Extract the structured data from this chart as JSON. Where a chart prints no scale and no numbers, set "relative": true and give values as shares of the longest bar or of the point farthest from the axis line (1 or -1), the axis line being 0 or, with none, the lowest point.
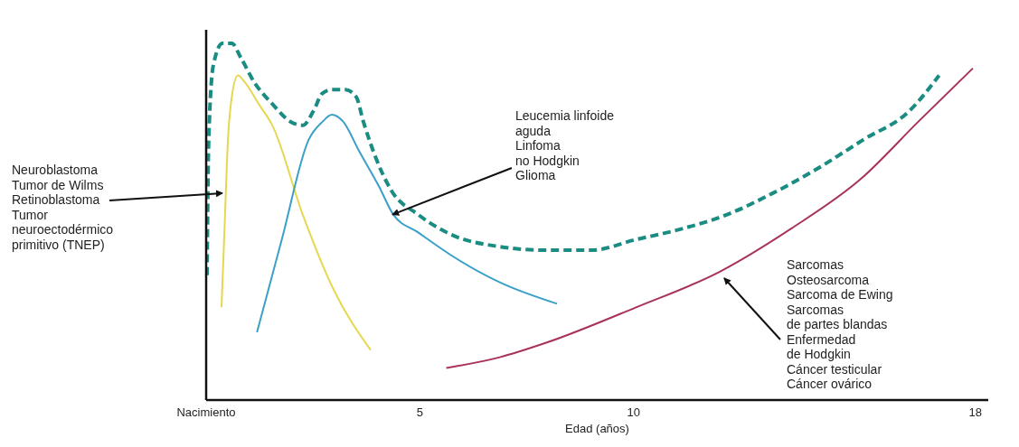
{
  "chart_data": {
    "type": "line",
    "relative": true,
    "xlabel": "Edad (años)",
    "xlim": [
      0,
      18.3
    ],
    "xticks": [
      {
        "value": 0,
        "label": "Nacimiento"
      },
      5,
      10,
      18
    ],
    "series": [
      {
        "color": "#1a8c82",
        "line_style": "dashed",
        "x": [
          0.02,
          0.06,
          0.17,
          0.38,
          0.6,
          0.81,
          1.13,
          1.55,
          1.98,
          2.26,
          2.51,
          2.72,
          2.94,
          3.26,
          3.51,
          3.68,
          4.0,
          4.32,
          4.96,
          5.81,
          6.87,
          7.94,
          9.0,
          10.06,
          11.13,
          12.19,
          13.26,
          14.32,
          15.38,
          16.45,
          17.15
        ],
        "values": [
          0.35,
          0.73,
          0.94,
          1.0,
          1.0,
          0.96,
          0.89,
          0.83,
          0.78,
          0.77,
          0.81,
          0.86,
          0.87,
          0.87,
          0.85,
          0.78,
          0.67,
          0.59,
          0.52,
          0.46,
          0.43,
          0.42,
          0.42,
          0.45,
          0.48,
          0.52,
          0.58,
          0.65,
          0.73,
          0.81,
          0.91
        ]
      },
      {
        "color": "#e6d84e",
        "x": [
          0.36,
          0.43,
          0.51,
          0.6,
          0.74,
          0.91,
          1.23,
          1.55,
          2.26,
          2.98,
          3.85
        ],
        "values": [
          0.26,
          0.48,
          0.73,
          0.85,
          0.91,
          0.89,
          0.83,
          0.77,
          0.52,
          0.31,
          0.14
        ]
      },
      {
        "color": "#3aa0c8",
        "x": [
          1.19,
          1.77,
          2.4,
          2.72,
          2.94,
          3.21,
          3.57,
          4.04,
          4.38,
          4.96,
          5.81,
          6.87,
          8.21
        ],
        "values": [
          0.19,
          0.45,
          0.73,
          0.78,
          0.8,
          0.78,
          0.7,
          0.6,
          0.52,
          0.47,
          0.4,
          0.33,
          0.27
        ]
      },
      {
        "color": "#a8325a",
        "x": [
          5.62,
          6.87,
          7.94,
          10.06,
          12.02,
          13.68,
          15.32,
          16.66,
          17.94
        ],
        "values": [
          0.09,
          0.12,
          0.16,
          0.26,
          0.36,
          0.48,
          0.62,
          0.78,
          0.93
        ]
      }
    ],
    "annotations": [
      {
        "text": "Neuroblastoma\nTumor de Wilms\nRetinoblastoma\nTumor\nneuroectodérmico\nprimitivo (TNEP)",
        "x": 0.38,
        "y": 0.58
      },
      {
        "text": "Leucemia linfoide\naguda\nLinfoma\nno Hodgkin\nGlioma",
        "x": 4.36,
        "y": 0.52
      },
      "Sarcomas\nOsteosarcoma\nSarcoma de Ewing\nSarcomas\nde partes blandas\nEnfermedad\nde Hodgkin\nCáncer testicular\nCáncer ovárico"
    ]
  }
}
